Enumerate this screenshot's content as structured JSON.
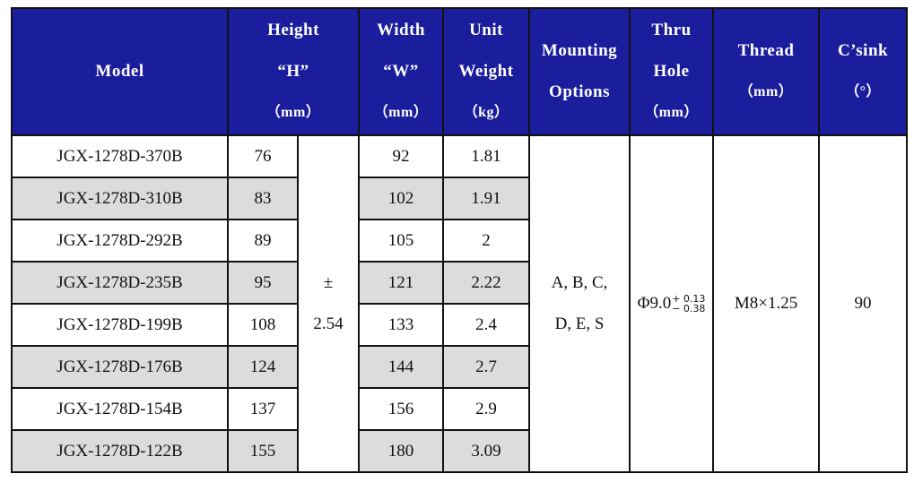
{
  "headers": {
    "model": "Model",
    "height": {
      "line1": "Height",
      "line2": "“H”",
      "unit": "（mm）"
    },
    "width": {
      "line1": "Width",
      "line2": "“W”",
      "unit": "（mm）"
    },
    "weight": {
      "line1": "Unit",
      "line2": "Weight",
      "unit": "（kg）"
    },
    "mounting": {
      "line1": "Mounting",
      "line2": "Options"
    },
    "thru_hole": {
      "line1": "Thru",
      "line2": "Hole",
      "unit": "（mm）"
    },
    "thread": {
      "line1": "Thread",
      "unit": "（mm）"
    },
    "csink": {
      "line1": "C’sink",
      "unit": "（°）"
    }
  },
  "rows": [
    {
      "model": "JGX-1278D-370B",
      "height": "76",
      "width": "92",
      "weight": "1.81"
    },
    {
      "model": "JGX-1278D-310B",
      "height": "83",
      "width": "102",
      "weight": "1.91"
    },
    {
      "model": "JGX-1278D-292B",
      "height": "89",
      "width": "105",
      "weight": "2"
    },
    {
      "model": "JGX-1278D-235B",
      "height": "95",
      "width": "121",
      "weight": "2.22"
    },
    {
      "model": "JGX-1278D-199B",
      "height": "108",
      "width": "133",
      "weight": "2.4"
    },
    {
      "model": "JGX-1278D-176B",
      "height": "124",
      "width": "144",
      "weight": "2.7"
    },
    {
      "model": "JGX-1278D-154B",
      "height": "137",
      "width": "156",
      "weight": "2.9"
    },
    {
      "model": "JGX-1278D-122B",
      "height": "155",
      "width": "180",
      "weight": "3.09"
    }
  ],
  "merged": {
    "tolerance_symbol": "±",
    "tolerance_value": "2.54",
    "mounting_line1": "A, B, C,",
    "mounting_line2": "D, E, S",
    "thru_hole_base": "Φ9.0",
    "thru_hole_tol_upper": "+ 0.13",
    "thru_hole_tol_lower": "− 0.38",
    "thread": "M8×1.25",
    "csink": "90"
  },
  "colors": {
    "header_bg": "#1b1e9c",
    "header_text": "#ffffff",
    "shade": "#dcdcdc",
    "border": "#111111"
  }
}
